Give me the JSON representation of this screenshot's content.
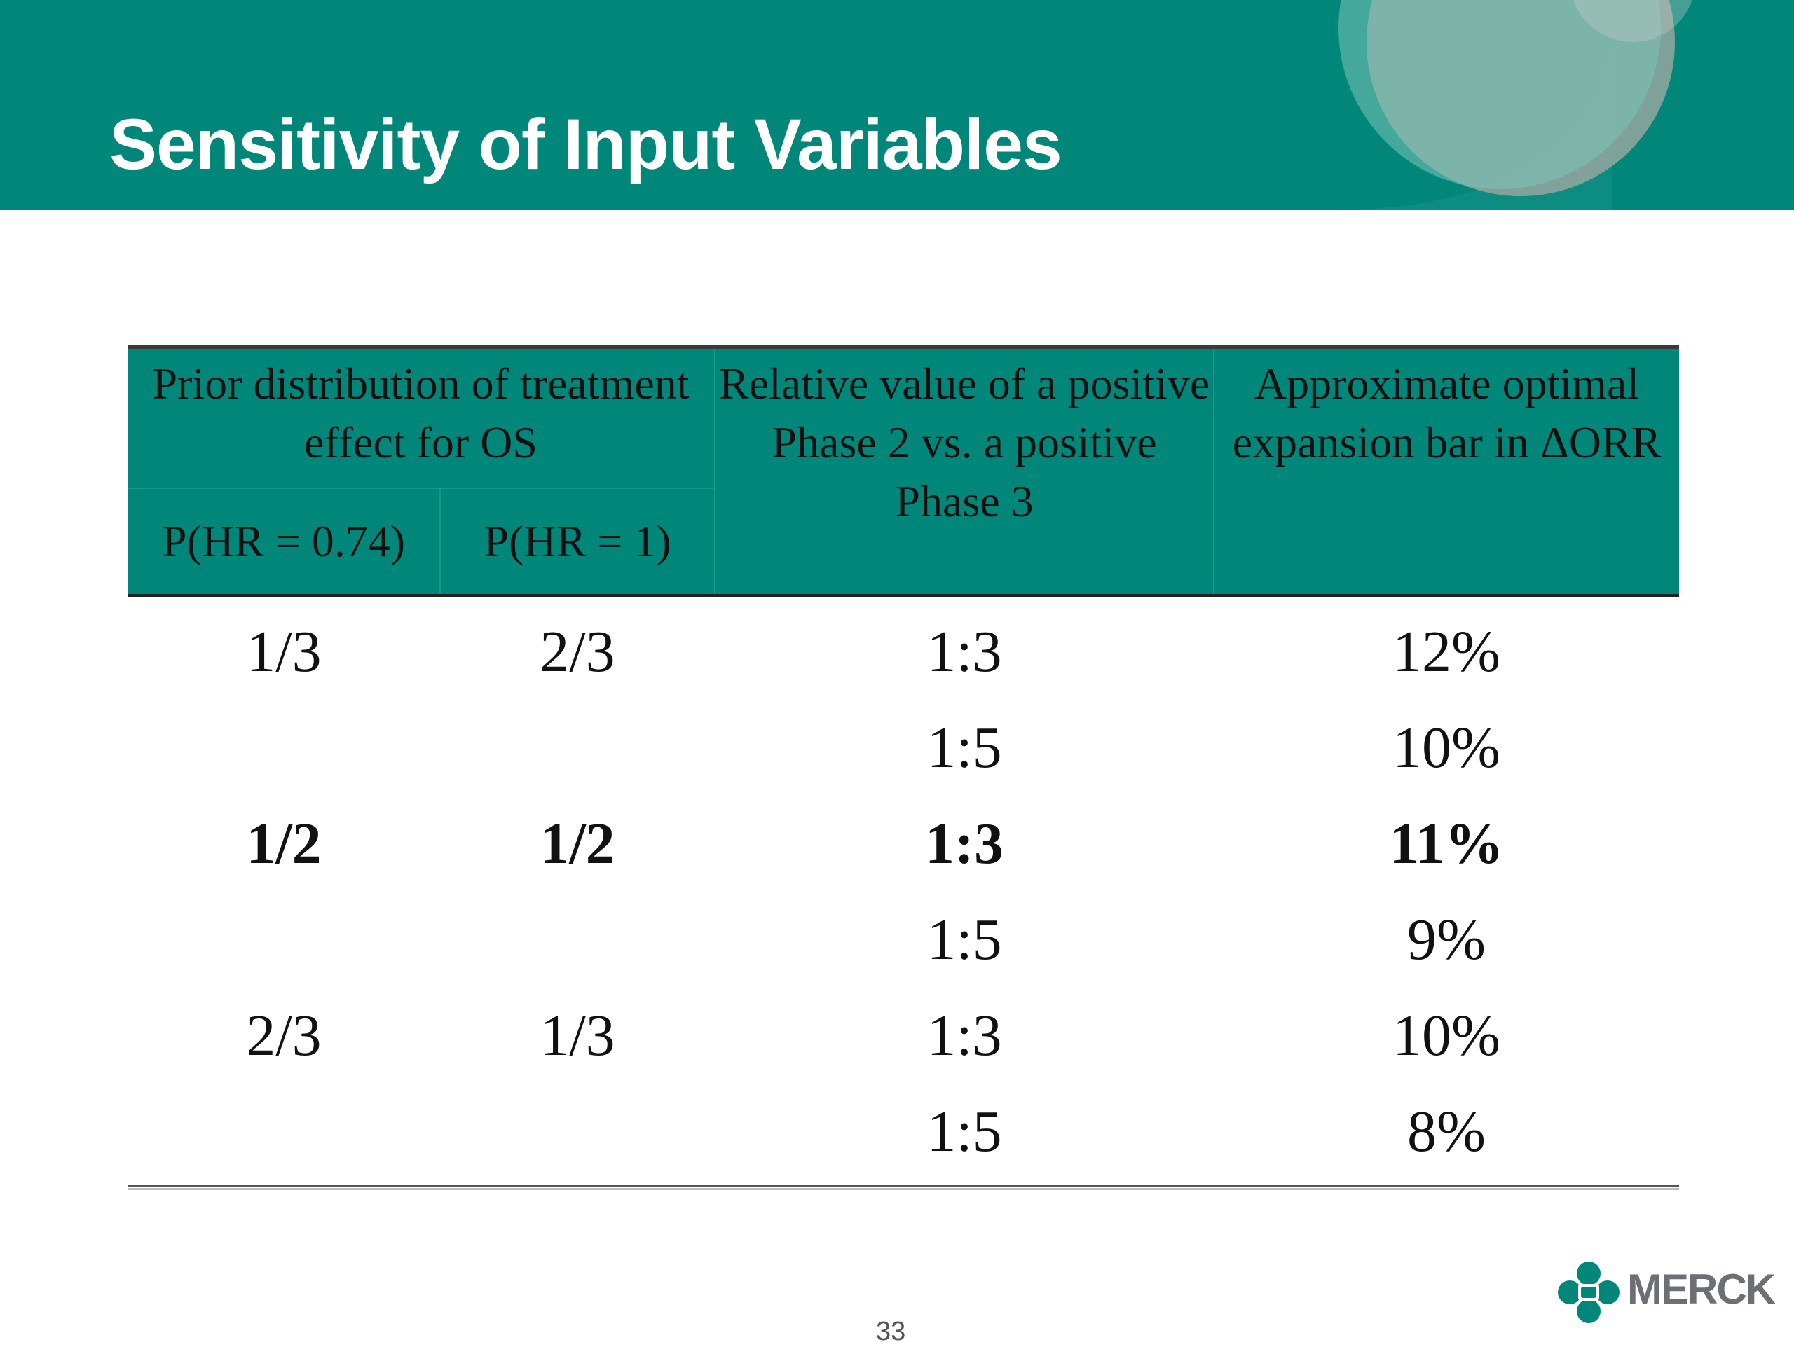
{
  "slide": {
    "title": "Sensitivity of Input Variables",
    "page_number": "33",
    "brand": "MERCK",
    "colors": {
      "header_teal": "#01877a",
      "brand_gray": "#6c6f73"
    }
  },
  "table": {
    "group_header": "Prior distribution of treatment effect for OS",
    "sub_headers": [
      "P(HR = 0.74)",
      "P(HR = 1)"
    ],
    "col3_header": "Relative value of a positive Phase 2 vs. a positive Phase 3",
    "col4_header": "Approximate optimal expansion bar in ΔORR",
    "rows": [
      {
        "p074": "1/3",
        "p1": "2/3",
        "ratio": "1:3",
        "bar": "12%"
      },
      {
        "p074": "",
        "p1": "",
        "ratio": "1:5",
        "bar": "10%"
      },
      {
        "p074": "1/2",
        "p1": "1/2",
        "ratio": "1:3",
        "bar": "11%"
      },
      {
        "p074": "",
        "p1": "",
        "ratio": "1:5",
        "bar": "9%"
      },
      {
        "p074": "2/3",
        "p1": "1/3",
        "ratio": "1:3",
        "bar": "10%"
      },
      {
        "p074": "",
        "p1": "",
        "ratio": "1:5",
        "bar": "8%"
      }
    ]
  }
}
